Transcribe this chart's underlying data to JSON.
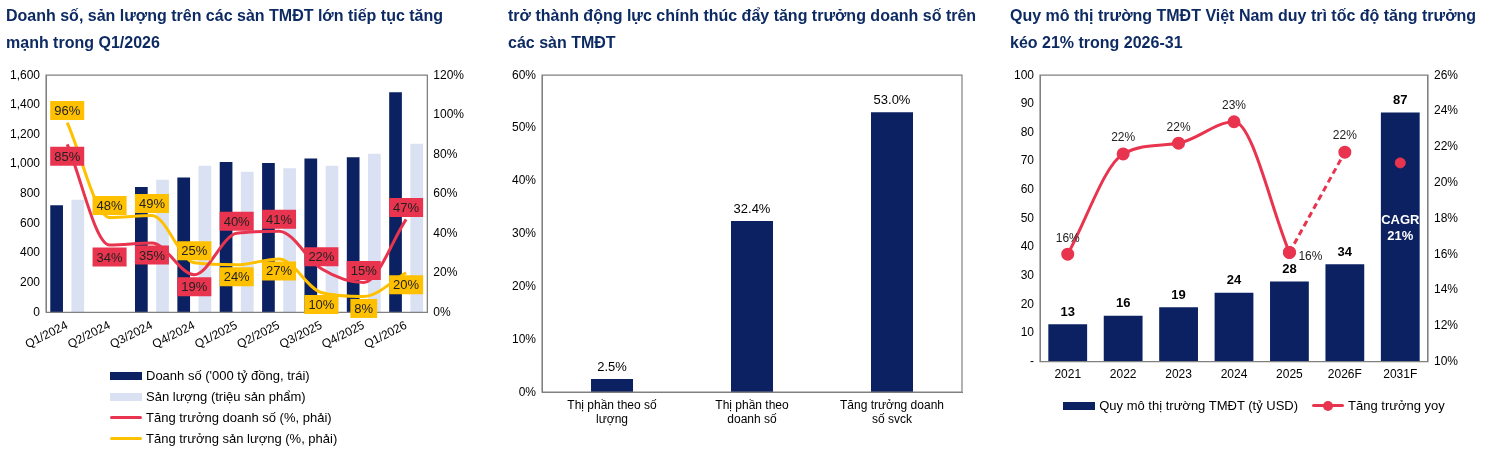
{
  "chart_data": [
    {
      "type": "bar",
      "title": "Doanh số, sản lượng trên các sàn TMĐT lớn tiếp tục tăng mạnh trong Q1/2026",
      "categories": [
        "Q1/2024",
        "Q2/2024",
        "Q3/2024",
        "Q4/2024",
        "Q1/2025",
        "Q2/2025",
        "Q3/2025",
        "Q4/2025",
        "Q1/2026"
      ],
      "series": [
        {
          "name": "Doanh số ('000 tỷ đồng, trái)",
          "color": "#0b2161",
          "values": [
            722,
            null,
            845,
            910,
            1014,
            1008,
            1037,
            1047,
            1485
          ]
        },
        {
          "name": "Sản lượng (triệu sản phẩm)",
          "color": "#d9e1f2",
          "values": [
            760,
            null,
            894,
            988,
            949,
            972,
            988,
            1069,
            1138
          ]
        },
        {
          "name": "Tăng trưởng doanh số (%, phải)",
          "type": "line",
          "axis": "y2",
          "color": "#e8344e",
          "values": [
            85,
            34,
            35,
            19,
            40,
            41,
            22,
            15,
            47
          ],
          "value_labels": [
            "85%",
            "34%",
            "35%",
            "19%",
            "40%",
            "41%",
            "22%",
            "15%",
            "47%"
          ]
        },
        {
          "name": "Tăng trưởng sản lượng (%, phải)",
          "type": "line",
          "axis": "y2",
          "color": "#ffc000",
          "values": [
            96,
            48,
            49,
            25,
            24,
            27,
            10,
            8,
            20
          ],
          "value_labels": [
            "96%",
            "48%",
            "49%",
            "25%",
            "24%",
            "27%",
            "10%",
            "8%",
            "20%"
          ]
        }
      ],
      "ylim": [
        0,
        1600
      ],
      "yticks": [
        0,
        200,
        400,
        600,
        800,
        {
          "value": 1000,
          "label": "1,000"
        },
        {
          "value": 1200,
          "label": "1,200"
        },
        {
          "value": 1400,
          "label": "1,400"
        },
        {
          "value": 1600,
          "label": "1,600"
        }
      ],
      "y2lim": [
        0,
        120
      ],
      "y2ticks": [
        {
          "value": 0,
          "label": "0%"
        },
        {
          "value": 20,
          "label": "20%"
        },
        {
          "value": 40,
          "label": "40%"
        },
        {
          "value": 60,
          "label": "60%"
        },
        {
          "value": 80,
          "label": "80%"
        },
        {
          "value": 100,
          "label": "100%"
        },
        {
          "value": 120,
          "label": "120%"
        }
      ],
      "grid": false,
      "legend": "bottom",
      "marker": "none"
    },
    {
      "type": "bar",
      "title": "trở thành động lực chính thúc đẩy tăng trưởng doanh số trên các sàn TMĐT",
      "categories": [
        "Thị phần theo số lượng",
        "Thị phần theo doanh số",
        "Tăng trưởng doanh số svck"
      ],
      "series": [
        {
          "color": "#0b2161",
          "values": [
            2.5,
            32.4,
            53.0
          ],
          "value_labels": [
            "2.5%",
            "32.4%",
            "53.0%"
          ]
        }
      ],
      "ylim": [
        0,
        60
      ],
      "yticks": [
        {
          "value": 0,
          "label": "0%"
        },
        {
          "value": 10,
          "label": "10%"
        },
        {
          "value": 20,
          "label": "20%"
        },
        {
          "value": 30,
          "label": "30%"
        },
        {
          "value": 40,
          "label": "40%"
        },
        {
          "value": 50,
          "label": "50%"
        },
        {
          "value": 60,
          "label": "60%"
        }
      ],
      "grid": false
    },
    {
      "type": "bar",
      "title": "Quy mô thị trường TMĐT Việt Nam duy trì tốc độ tăng trưởng kéo 21% trong 2026-31",
      "categories": [
        "2021",
        "2022",
        "2023",
        "2024",
        "2025",
        "2026F",
        "2031F"
      ],
      "series": [
        {
          "name": "Quy mô thị trường TMĐT (tỷ USD)",
          "color": "#0b2161",
          "values": [
            13,
            16,
            19,
            24,
            28,
            34,
            87
          ],
          "value_labels": [
            "13",
            "16",
            "19",
            "24",
            "28",
            "34",
            "87"
          ]
        },
        {
          "name": "Tăng trưởng yoy",
          "type": "line",
          "axis": "y2",
          "color": "#e8344e",
          "values": [
            16.0,
            21.6,
            22.2,
            23.4,
            16.1,
            null,
            null
          ],
          "value_labels": [
            "16%",
            "22%",
            "22%",
            "23%",
            "16%",
            null,
            null
          ]
        },
        {
          "type": "line",
          "axis": "y2",
          "color": "#e8344e",
          "line_style": "dashed",
          "values": [
            null,
            null,
            null,
            null,
            16.1,
            21.7,
            null
          ],
          "value_labels": [
            null,
            null,
            null,
            null,
            null,
            "22%",
            null
          ]
        },
        {
          "type": "scatter",
          "axis": "y2",
          "color": "#e8344e",
          "values": [
            null,
            null,
            null,
            null,
            null,
            null,
            21.1
          ]
        }
      ],
      "ylim": [
        0,
        100
      ],
      "yticks": [
        {
          "value": 0,
          "label": "-"
        },
        10,
        20,
        30,
        40,
        50,
        60,
        70,
        80,
        90,
        100
      ],
      "y2lim": [
        10,
        26
      ],
      "y2ticks": [
        {
          "value": 10,
          "label": "10%"
        },
        {
          "value": 12,
          "label": "12%"
        },
        {
          "value": 14,
          "label": "14%"
        },
        {
          "value": 16,
          "label": "16%"
        },
        {
          "value": 18,
          "label": "18%"
        },
        {
          "value": 20,
          "label": "20%"
        },
        {
          "value": 22,
          "label": "22%"
        },
        {
          "value": 24,
          "label": "24%"
        },
        {
          "value": 26,
          "label": "26%"
        }
      ],
      "grid": false,
      "legend": "bottom",
      "marker": "circle",
      "annotations": [
        "CAGR 21%"
      ]
    }
  ]
}
